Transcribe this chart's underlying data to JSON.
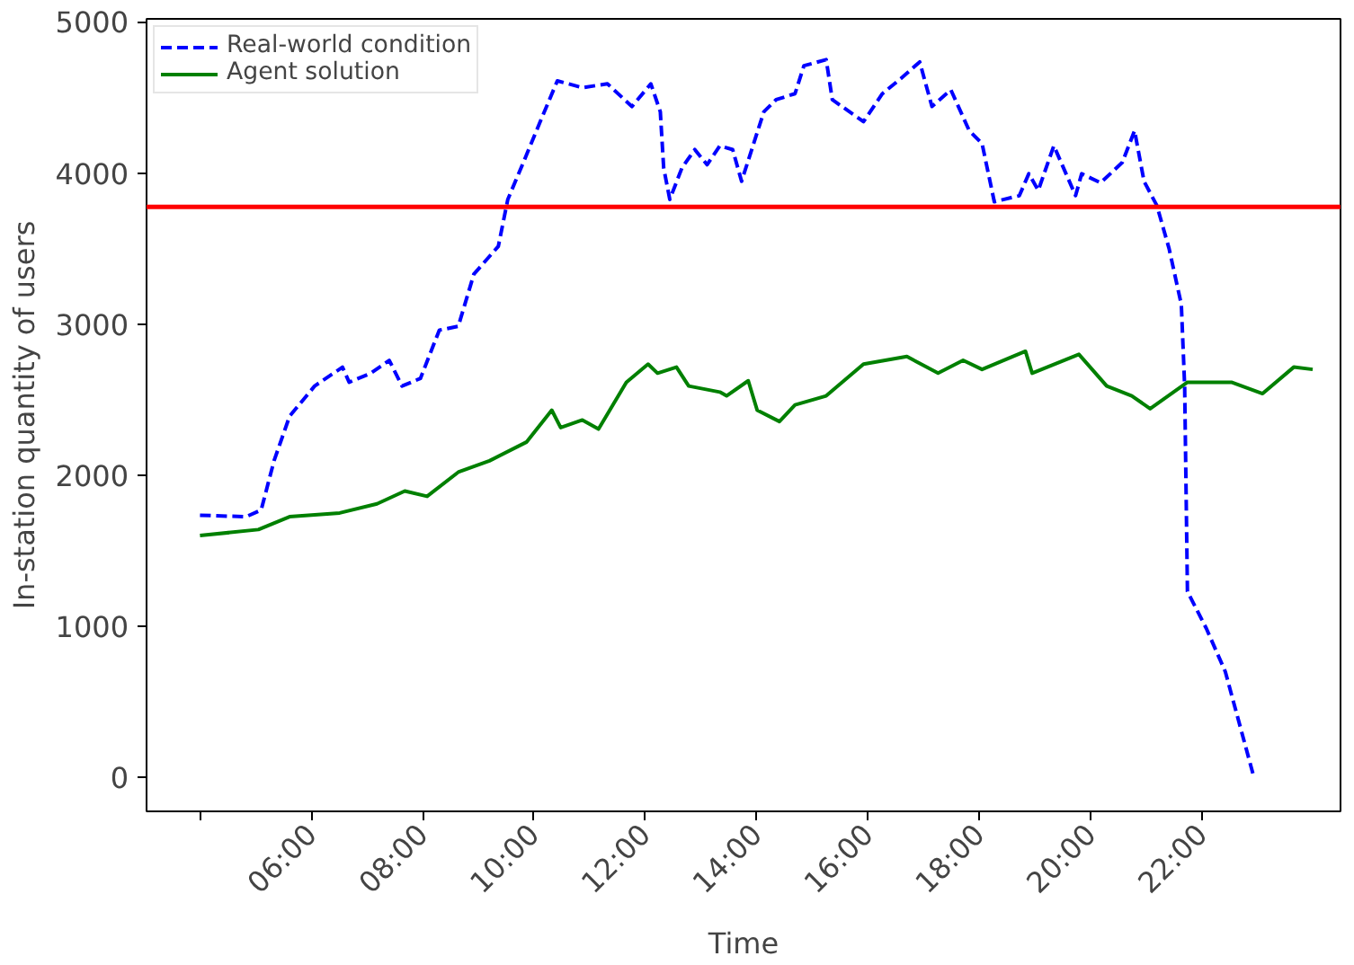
{
  "chart_data": {
    "type": "line",
    "xlabel": "Time",
    "ylabel": "In-station quantity of users",
    "xlim": [
      3.04,
      24.49
    ],
    "ylim": [
      -225,
      5020
    ],
    "xticks": [
      {
        "value": 4,
        "label": null
      },
      {
        "value": 6,
        "label": "06:00"
      },
      {
        "value": 8,
        "label": "08:00"
      },
      {
        "value": 10,
        "label": "10:00"
      },
      {
        "value": 12,
        "label": "12:00"
      },
      {
        "value": 14,
        "label": "14:00"
      },
      {
        "value": 16,
        "label": "16:00"
      },
      {
        "value": 18,
        "label": "18:00"
      },
      {
        "value": 20,
        "label": "20:00"
      },
      {
        "value": 22,
        "label": "22:00"
      }
    ],
    "yticks": [
      0,
      1000,
      2000,
      3000,
      4000,
      5000
    ],
    "grid": false,
    "legend": "top left",
    "ref_lines": [
      {
        "axis": "y",
        "value": 3775,
        "color": "#ff0000"
      }
    ],
    "series": [
      {
        "name": "Real-world condition",
        "color": "#0000ff",
        "line_style": "dashed",
        "x": [
          4.0,
          4.83,
          5.1,
          5.33,
          5.61,
          6.06,
          6.56,
          6.68,
          7.07,
          7.4,
          7.63,
          7.96,
          8.3,
          8.64,
          8.92,
          9.36,
          9.53,
          9.81,
          10.09,
          10.42,
          10.87,
          11.32,
          11.76,
          12.1,
          12.27,
          12.33,
          12.44,
          12.66,
          12.89,
          13.11,
          13.34,
          13.57,
          13.73,
          14.13,
          14.35,
          14.69,
          14.85,
          15.25,
          15.36,
          15.92,
          16.26,
          16.59,
          16.93,
          17.15,
          17.49,
          17.82,
          18.05,
          18.27,
          18.72,
          18.89,
          19.06,
          19.34,
          19.73,
          19.84,
          20.18,
          20.57,
          20.79,
          20.96,
          21.19,
          21.41,
          21.63,
          21.69,
          21.74,
          22.08,
          22.42,
          22.92
        ],
        "values": [
          1735,
          1725,
          1770,
          2095,
          2390,
          2590,
          2715,
          2615,
          2675,
          2760,
          2590,
          2640,
          2960,
          2985,
          3330,
          3515,
          3825,
          4070,
          4320,
          4610,
          4565,
          4590,
          4440,
          4590,
          4405,
          4035,
          3825,
          4035,
          4155,
          4055,
          4180,
          4155,
          3945,
          4405,
          4485,
          4525,
          4710,
          4750,
          4485,
          4340,
          4525,
          4625,
          4735,
          4440,
          4550,
          4280,
          4195,
          3810,
          3850,
          3995,
          3885,
          4180,
          3850,
          3995,
          3935,
          4070,
          4280,
          3945,
          3785,
          3500,
          3130,
          2590,
          1230,
          985,
          700,
          20
        ]
      },
      {
        "name": "Agent solution",
        "color": "#008000",
        "line_style": "solid",
        "x": [
          4.0,
          5.05,
          5.61,
          6.51,
          7.18,
          7.68,
          8.08,
          8.64,
          9.2,
          9.87,
          10.32,
          10.48,
          10.87,
          11.16,
          11.66,
          12.05,
          12.22,
          12.56,
          12.78,
          13.34,
          13.46,
          13.85,
          14.01,
          14.41,
          14.69,
          15.25,
          15.92,
          16.7,
          17.26,
          17.71,
          18.05,
          18.83,
          18.95,
          19.79,
          20.29,
          20.74,
          21.07,
          21.74,
          22.53,
          23.09,
          23.65,
          23.99
        ],
        "values": [
          1600,
          1640,
          1725,
          1750,
          1810,
          1895,
          1860,
          2020,
          2095,
          2220,
          2430,
          2315,
          2365,
          2305,
          2615,
          2735,
          2675,
          2715,
          2590,
          2550,
          2525,
          2625,
          2430,
          2355,
          2465,
          2525,
          2735,
          2785,
          2675,
          2760,
          2700,
          2820,
          2675,
          2800,
          2590,
          2525,
          2440,
          2615,
          2615,
          2540,
          2715,
          2700
        ]
      }
    ]
  }
}
